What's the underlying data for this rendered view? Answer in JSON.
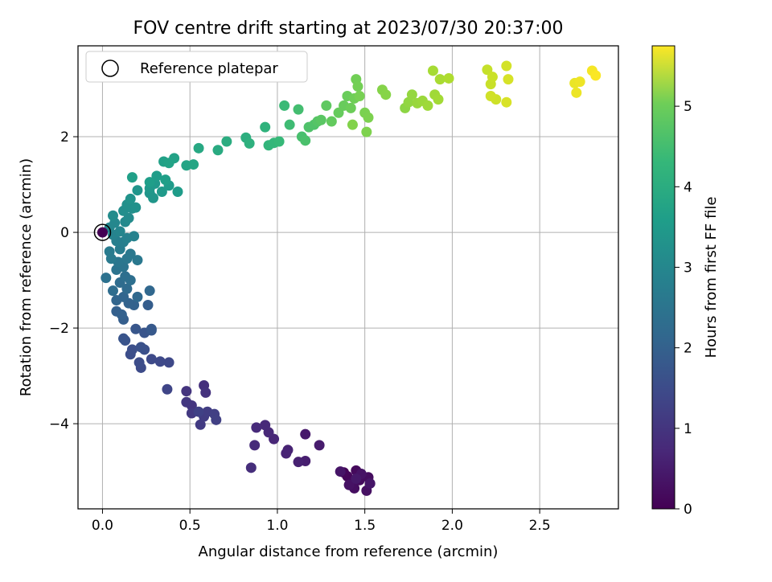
{
  "chart_data": {
    "type": "scatter",
    "title": "FOV centre drift starting at 2023/07/30 20:37:00",
    "xlabel": "Angular distance from reference (arcmin)",
    "ylabel": "Rotation from reference (arcmin)",
    "xlim": [
      -0.14,
      2.95
    ],
    "ylim": [
      -5.78,
      3.9
    ],
    "x_ticks": [
      "0.0",
      "0.5",
      "1.0",
      "1.5",
      "2.0",
      "2.5"
    ],
    "y_ticks": [
      "−4",
      "−2",
      "0",
      "2"
    ],
    "grid": true,
    "legend": {
      "placement": "top-left",
      "label": "Reference platepar"
    },
    "reference_point": {
      "x": 0.0,
      "y": 0.0
    },
    "colorbar": {
      "label": "Hours from first FF file",
      "ticks": [
        "0",
        "1",
        "2",
        "3",
        "4",
        "5"
      ],
      "range": [
        0,
        5.75
      ],
      "colormap": "viridis"
    },
    "points": [
      [
        1.38,
        -5.02,
        0.05
      ],
      [
        1.4,
        -5.1,
        0.08
      ],
      [
        1.43,
        -5.22,
        0.12
      ],
      [
        1.45,
        -4.98,
        0.15
      ],
      [
        1.47,
        -5.18,
        0.18
      ],
      [
        1.52,
        -5.12,
        0.2
      ],
      [
        1.44,
        -5.35,
        0.22
      ],
      [
        1.51,
        -5.4,
        0.25
      ],
      [
        1.41,
        -5.28,
        0.28
      ],
      [
        1.48,
        -5.05,
        0.3
      ],
      [
        1.36,
        -5.0,
        0.33
      ],
      [
        1.53,
        -5.25,
        0.35
      ],
      [
        1.45,
        -5.15,
        0.38
      ],
      [
        1.16,
        -4.22,
        0.4
      ],
      [
        1.24,
        -4.45,
        0.45
      ],
      [
        1.16,
        -4.78,
        0.48
      ],
      [
        1.12,
        -4.8,
        0.52
      ],
      [
        1.06,
        -4.55,
        0.55
      ],
      [
        1.05,
        -4.62,
        0.58
      ],
      [
        0.98,
        -4.32,
        0.62
      ],
      [
        0.95,
        -4.18,
        0.65
      ],
      [
        0.93,
        -4.03,
        0.68
      ],
      [
        0.88,
        -4.08,
        0.7
      ],
      [
        0.87,
        -4.45,
        0.72
      ],
      [
        0.85,
        -4.92,
        0.75
      ],
      [
        0.58,
        -3.2,
        0.8
      ],
      [
        0.59,
        -3.35,
        0.85
      ],
      [
        0.48,
        -3.32,
        0.88
      ],
      [
        0.51,
        -3.62,
        0.9
      ],
      [
        0.48,
        -3.55,
        0.93
      ],
      [
        0.51,
        -3.78,
        0.96
      ],
      [
        0.56,
        -4.02,
        1.0
      ],
      [
        0.58,
        -3.85,
        1.02
      ],
      [
        0.6,
        -3.75,
        1.05
      ],
      [
        0.64,
        -3.8,
        1.08
      ],
      [
        0.65,
        -3.92,
        1.1
      ],
      [
        0.55,
        -3.75,
        1.12
      ],
      [
        0.37,
        -3.28,
        1.2
      ],
      [
        0.38,
        -2.72,
        1.25
      ],
      [
        0.33,
        -2.7,
        1.28
      ],
      [
        0.28,
        -2.65,
        1.3
      ],
      [
        0.22,
        -2.83,
        1.32
      ],
      [
        0.21,
        -2.72,
        1.35
      ],
      [
        0.16,
        -2.55,
        1.38
      ],
      [
        0.17,
        -2.45,
        1.4
      ],
      [
        0.24,
        -2.45,
        1.42
      ],
      [
        0.22,
        -2.4,
        1.45
      ],
      [
        0.13,
        -2.26,
        1.48
      ],
      [
        0.12,
        -2.22,
        1.5
      ],
      [
        0.24,
        -2.1,
        1.53
      ],
      [
        0.19,
        -2.02,
        1.55
      ],
      [
        0.28,
        -2.05,
        1.58
      ],
      [
        0.28,
        -2.02,
        1.6
      ],
      [
        0.26,
        -1.52,
        1.7
      ],
      [
        0.12,
        -1.82,
        1.72
      ],
      [
        0.08,
        -1.65,
        1.75
      ],
      [
        0.11,
        -1.72,
        1.78
      ],
      [
        0.18,
        -1.52,
        1.8
      ],
      [
        0.15,
        -1.48,
        1.82
      ],
      [
        0.08,
        -1.42,
        1.85
      ],
      [
        0.12,
        -1.35,
        1.88
      ],
      [
        0.27,
        -1.22,
        1.92
      ],
      [
        0.2,
        -1.35,
        1.95
      ],
      [
        0.14,
        -1.18,
        1.98
      ],
      [
        0.1,
        -1.05,
        2.02
      ],
      [
        0.06,
        -1.22,
        2.05
      ],
      [
        0.16,
        -1.0,
        2.08
      ],
      [
        0.13,
        -0.92,
        2.1
      ],
      [
        0.02,
        -0.95,
        2.15
      ],
      [
        0.08,
        -0.78,
        2.18
      ],
      [
        0.12,
        -0.72,
        2.2
      ],
      [
        0.09,
        -0.62,
        2.25
      ],
      [
        0.14,
        -0.55,
        2.28
      ],
      [
        0.2,
        -0.58,
        2.3
      ],
      [
        0.16,
        -0.45,
        2.32
      ],
      [
        0.05,
        -0.55,
        2.35
      ],
      [
        0.04,
        -0.4,
        2.38
      ],
      [
        0.1,
        -0.35,
        2.42
      ],
      [
        0.12,
        -0.2,
        2.45
      ],
      [
        0.08,
        -0.18,
        2.48
      ],
      [
        0.14,
        -0.12,
        2.52
      ],
      [
        0.18,
        -0.08,
        2.55
      ],
      [
        0.06,
        -0.05,
        2.58
      ],
      [
        0.1,
        0.02,
        2.62
      ],
      [
        0.04,
        0.1,
        2.65
      ],
      [
        0.07,
        0.2,
        2.68
      ],
      [
        0.13,
        0.22,
        2.72
      ],
      [
        0.15,
        0.3,
        2.75
      ],
      [
        0.06,
        0.35,
        2.78
      ],
      [
        0.12,
        0.45,
        2.82
      ],
      [
        0.17,
        0.5,
        2.85
      ],
      [
        0.14,
        0.58,
        2.88
      ],
      [
        0.19,
        0.52,
        2.9
      ],
      [
        0.16,
        0.7,
        2.95
      ],
      [
        0.2,
        0.88,
        2.98
      ],
      [
        0.27,
        0.82,
        3.0
      ],
      [
        0.29,
        0.72,
        3.02
      ],
      [
        0.27,
        0.92,
        3.05
      ],
      [
        0.3,
        1.02,
        3.08
      ],
      [
        0.34,
        0.85,
        3.1
      ],
      [
        0.38,
        0.98,
        3.12
      ],
      [
        0.43,
        0.85,
        3.15
      ],
      [
        0.31,
        1.18,
        3.18
      ],
      [
        0.27,
        1.05,
        3.2
      ],
      [
        0.36,
        1.1,
        3.22
      ],
      [
        0.17,
        1.15,
        3.25
      ],
      [
        0.35,
        1.48,
        3.28
      ],
      [
        0.41,
        1.55,
        3.3
      ],
      [
        0.38,
        1.45,
        3.32
      ],
      [
        0.48,
        1.4,
        3.35
      ],
      [
        0.52,
        1.42,
        3.38
      ],
      [
        0.55,
        1.76,
        3.45
      ],
      [
        0.66,
        1.72,
        3.5
      ],
      [
        0.71,
        1.9,
        3.55
      ],
      [
        0.82,
        1.98,
        3.6
      ],
      [
        0.84,
        1.86,
        3.65
      ],
      [
        0.93,
        2.2,
        3.7
      ],
      [
        0.95,
        1.82,
        3.75
      ],
      [
        0.98,
        1.87,
        3.8
      ],
      [
        1.01,
        1.9,
        3.85
      ],
      [
        1.04,
        2.65,
        3.9
      ],
      [
        1.07,
        2.25,
        3.95
      ],
      [
        1.12,
        2.57,
        4.0
      ],
      [
        1.14,
        2.0,
        4.05
      ],
      [
        1.16,
        1.92,
        4.08
      ],
      [
        1.18,
        2.2,
        4.12
      ],
      [
        1.21,
        2.25,
        4.15
      ],
      [
        1.23,
        2.32,
        4.2
      ],
      [
        1.25,
        2.35,
        4.25
      ],
      [
        1.28,
        2.65,
        4.3
      ],
      [
        1.31,
        2.32,
        4.35
      ],
      [
        1.35,
        2.5,
        4.38
      ],
      [
        1.38,
        2.65,
        4.4
      ],
      [
        1.4,
        2.85,
        4.42
      ],
      [
        1.42,
        2.6,
        4.45
      ],
      [
        1.44,
        2.8,
        4.48
      ],
      [
        1.45,
        3.2,
        4.5
      ],
      [
        1.46,
        3.05,
        4.52
      ],
      [
        1.47,
        2.85,
        4.55
      ],
      [
        1.5,
        2.5,
        4.58
      ],
      [
        1.52,
        2.4,
        4.6
      ],
      [
        1.51,
        2.1,
        4.62
      ],
      [
        1.43,
        2.25,
        4.65
      ],
      [
        1.6,
        2.98,
        4.68
      ],
      [
        1.62,
        2.88,
        4.7
      ],
      [
        1.73,
        2.6,
        4.75
      ],
      [
        1.75,
        2.72,
        4.8
      ],
      [
        1.77,
        2.88,
        4.82
      ],
      [
        1.8,
        2.7,
        4.85
      ],
      [
        1.83,
        2.75,
        4.88
      ],
      [
        1.86,
        2.65,
        4.9
      ],
      [
        1.9,
        2.88,
        4.92
      ],
      [
        1.92,
        2.78,
        4.95
      ],
      [
        1.89,
        3.38,
        4.98
      ],
      [
        1.93,
        3.2,
        5.0
      ],
      [
        1.98,
        3.22,
        5.05
      ],
      [
        2.2,
        3.4,
        5.25
      ],
      [
        2.22,
        3.1,
        5.28
      ],
      [
        2.23,
        3.25,
        5.3
      ],
      [
        2.25,
        2.78,
        5.32
      ],
      [
        2.22,
        2.85,
        5.35
      ],
      [
        2.31,
        3.48,
        5.38
      ],
      [
        2.32,
        3.2,
        5.4
      ],
      [
        2.31,
        2.72,
        5.42
      ],
      [
        2.7,
        3.12,
        5.58
      ],
      [
        2.71,
        2.92,
        5.6
      ],
      [
        2.73,
        3.15,
        5.62
      ],
      [
        2.8,
        3.38,
        5.68
      ],
      [
        2.82,
        3.28,
        5.72
      ]
    ]
  }
}
